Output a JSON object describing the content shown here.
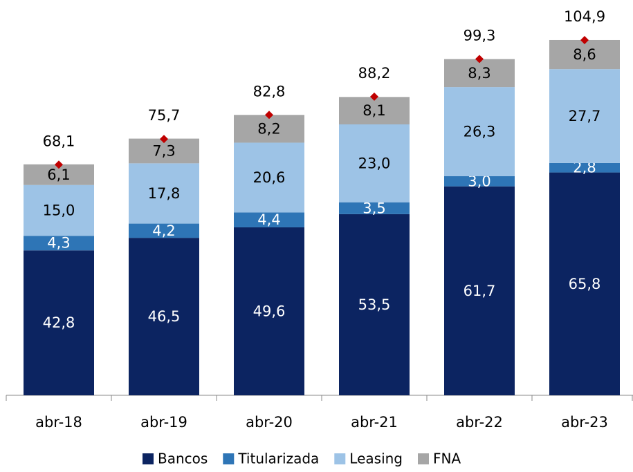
{
  "chart_data": {
    "type": "stacked-bar",
    "categories": [
      "abr-18",
      "abr-19",
      "abr-20",
      "abr-21",
      "abr-22",
      "abr-23"
    ],
    "series": [
      {
        "name": "Bancos",
        "color": "#0c2461",
        "values": [
          42.8,
          46.5,
          49.6,
          53.5,
          61.7,
          65.8
        ],
        "value_labels": [
          "42,8",
          "46,5",
          "49,6",
          "53,5",
          "61,7",
          "65,8"
        ]
      },
      {
        "name": "Titularizada",
        "color": "#2e75b6",
        "values": [
          4.3,
          4.2,
          4.4,
          3.5,
          3.0,
          2.8
        ],
        "value_labels": [
          "4,3",
          "4,2",
          "4,4",
          "3,5",
          "3,0",
          "2,8"
        ]
      },
      {
        "name": "Leasing",
        "color": "#9dc3e6",
        "values": [
          15.0,
          17.8,
          20.6,
          23.0,
          26.3,
          27.7
        ],
        "value_labels": [
          "15,0",
          "17,8",
          "20,6",
          "23,0",
          "26,3",
          "27,7"
        ]
      },
      {
        "name": "FNA",
        "color": "#a6a6a6",
        "values": [
          6.1,
          7.3,
          8.2,
          8.1,
          8.3,
          8.6
        ],
        "value_labels": [
          "6,1",
          "7,3",
          "8,2",
          "8,1",
          "8,3",
          "8,6"
        ]
      }
    ],
    "totals": [
      68.1,
      75.7,
      82.8,
      88.2,
      99.3,
      104.9
    ],
    "total_labels": [
      "68,1",
      "75,7",
      "82,8",
      "88,2",
      "99,3",
      "104,9"
    ],
    "total_color": "#c00000",
    "legend": "bottom"
  }
}
